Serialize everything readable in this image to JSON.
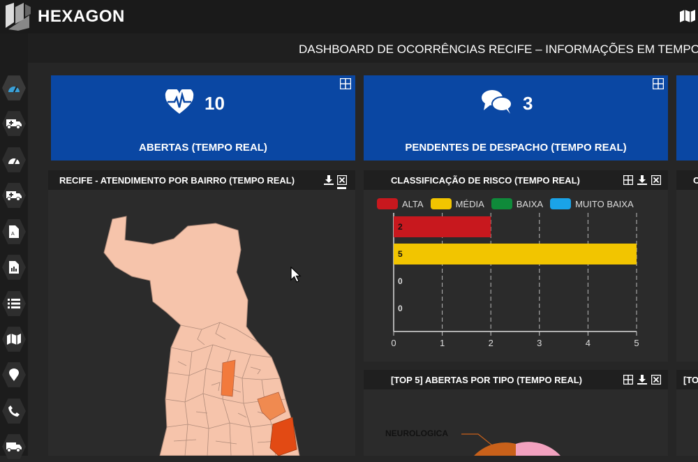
{
  "app": {
    "brand": "HEXAGON",
    "dashboard_title": "DASHBOARD DE OCORRÊNCIAS RECIFE – INFORMAÇÕES EM TEMPO REAL"
  },
  "icons": {
    "logo": "hexagon-logo-icon",
    "top_right": "map-icon"
  },
  "sidebar": {
    "items": [
      {
        "icon": "dashboard-gauge-icon",
        "active": true
      },
      {
        "icon": "ambulance-add-icon"
      },
      {
        "icon": "gauge-icon"
      },
      {
        "icon": "ambulance-add-icon"
      },
      {
        "icon": "pdf-file-icon"
      },
      {
        "icon": "file-chart-icon"
      },
      {
        "icon": "list-icon"
      },
      {
        "icon": "map-icon"
      },
      {
        "icon": "map-marker-icon"
      },
      {
        "icon": "phone-icon"
      },
      {
        "icon": "ambulance-icon"
      }
    ]
  },
  "kpis": [
    {
      "icon": "heartbeat-icon",
      "value": "10",
      "label": "ABERTAS (TEMPO REAL)"
    },
    {
      "icon": "chat-bubbles-icon",
      "value": "3",
      "label": "PENDENTES DE DESPACHO (TEMPO REAL)"
    }
  ],
  "panels": {
    "map": {
      "title": "RECIFE - ATENDIMENTO POR BAIRRO (TEMPO REAL)"
    },
    "risk": {
      "title": "CLASSIFICAÇÃO DE RISCO (TEMPO REAL)"
    },
    "top5": {
      "title": "[TOP 5] ABERTAS POR TIPO (TEMPO REAL)",
      "slice_label": "NEUROLOGICA"
    },
    "partial_right_1": {
      "title": "C"
    },
    "partial_right_2": {
      "title": "[TO"
    }
  },
  "chart_data": {
    "type": "bar",
    "orientation": "horizontal",
    "series": [
      {
        "name": "ALTA",
        "value": 2,
        "label": "2",
        "color": "#c8181e"
      },
      {
        "name": "MÉDIA",
        "value": 5,
        "label": "5",
        "color": "#f2c500"
      },
      {
        "name": "BAIXA",
        "value": 0,
        "label": "0",
        "color": "#0f8a3a"
      },
      {
        "name": "MUITO BAIXA",
        "value": 0,
        "label": "0",
        "color": "#1aa3e8"
      }
    ],
    "xlim": [
      0,
      5
    ],
    "xticks": [
      "0",
      "1",
      "2",
      "3",
      "4",
      "5"
    ],
    "grid": true,
    "legend": "top"
  },
  "colors": {
    "kpi_blue": "#0a47a3",
    "panel_bg": "#2b2b2b",
    "header_bg": "#1f1f1f"
  }
}
